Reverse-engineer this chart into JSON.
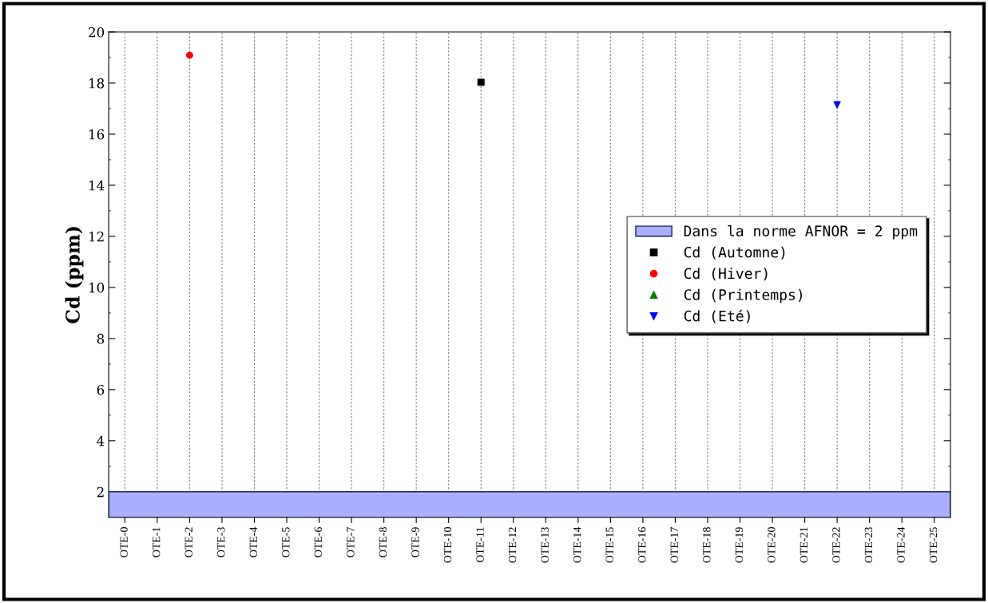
{
  "chart_data": {
    "type": "scatter",
    "ylabel": "Cd (ppm)",
    "categories": [
      "OTE-0",
      "OTE-1",
      "OTE-2",
      "OTE-3",
      "OTE-4",
      "OTE-5",
      "OTE-6",
      "OTE-7",
      "OTE-8",
      "OTE-9",
      "OTE-10",
      "OTE-11",
      "OTE-12",
      "OTE-13",
      "OTE-14",
      "OTE-15",
      "OTE-16",
      "OTE-17",
      "OTE-18",
      "OTE-19",
      "OTE-20",
      "OTE-21",
      "OTE-22",
      "OTE-23",
      "OTE-24",
      "OTE-25"
    ],
    "series": [
      {
        "name": "Cd (Automne)",
        "color": "#000000",
        "marker": "square",
        "values": [
          null,
          null,
          null,
          null,
          null,
          null,
          null,
          null,
          null,
          null,
          null,
          18.03,
          null,
          null,
          null,
          null,
          null,
          null,
          null,
          null,
          null,
          null,
          null,
          null,
          null,
          null
        ]
      },
      {
        "name": "Cd (Hiver)",
        "color": "#ff0000",
        "marker": "circle",
        "values": [
          null,
          null,
          19.09,
          null,
          null,
          null,
          null,
          null,
          null,
          null,
          null,
          null,
          null,
          null,
          null,
          null,
          null,
          null,
          null,
          null,
          null,
          null,
          null,
          null,
          null,
          null
        ]
      },
      {
        "name": "Cd (Printemps)",
        "color": "#008000",
        "marker": "triangle",
        "values": [
          null,
          null,
          null,
          null,
          null,
          null,
          null,
          null,
          null,
          null,
          null,
          null,
          null,
          null,
          null,
          null,
          null,
          null,
          null,
          null,
          null,
          null,
          null,
          null,
          null,
          null
        ]
      },
      {
        "name": "Cd (Eté)",
        "color": "#0000ff",
        "marker": "triangle_down",
        "values": [
          null,
          null,
          null,
          null,
          null,
          null,
          null,
          null,
          null,
          null,
          null,
          null,
          null,
          null,
          null,
          null,
          null,
          null,
          null,
          null,
          null,
          null,
          17.15,
          null,
          null,
          null
        ]
      }
    ],
    "bands": [
      {
        "axis": "y",
        "from": 1,
        "to": 2,
        "label": "Dans la norme AFNOR = 2 ppm",
        "color": "#aab0ff"
      }
    ],
    "ylim": [
      1,
      20
    ],
    "yticks": [
      2,
      4,
      6,
      8,
      10,
      12,
      14,
      16,
      18,
      20
    ],
    "grid": "x",
    "legend": "right"
  }
}
